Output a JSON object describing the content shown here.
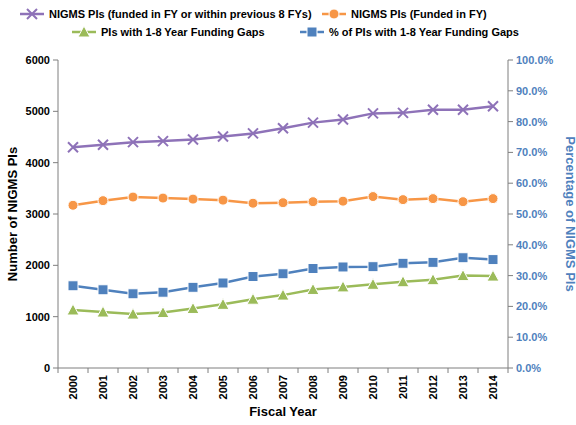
{
  "chart_data": {
    "type": "line",
    "x_label": "Fiscal Year",
    "y_label": "Number of NIGMS PIs",
    "y2_label": "Percentage of NIGMS PIs",
    "categories": [
      "2000",
      "2001",
      "2002",
      "2003",
      "2004",
      "2005",
      "2006",
      "2007",
      "2008",
      "2009",
      "2010",
      "2011",
      "2012",
      "2013",
      "2014"
    ],
    "ylim": [
      0,
      6000
    ],
    "yticks": [
      0,
      1000,
      2000,
      3000,
      4000,
      5000,
      6000
    ],
    "y2lim": [
      0,
      100
    ],
    "y2ticks": [
      {
        "value": 0,
        "label": "0.0%"
      },
      {
        "value": 10,
        "label": "10.0%"
      },
      {
        "value": 20,
        "label": "20.0%"
      },
      {
        "value": 30,
        "label": "30.0%"
      },
      {
        "value": 40,
        "label": "40.0%"
      },
      {
        "value": 50,
        "label": "50.0%"
      },
      {
        "value": 60,
        "label": "60.0%"
      },
      {
        "value": 70,
        "label": "70.0%"
      },
      {
        "value": 80,
        "label": "80.0%"
      },
      {
        "value": 90,
        "label": "90.0%"
      },
      {
        "value": 100,
        "label": "100.0%"
      }
    ],
    "grid": false,
    "legend": "top",
    "series": [
      {
        "name": "NIGMS PIs (funded in FY or within previous 8 FYs)",
        "color": "#8e72b8",
        "marker": "x",
        "values": [
          4300,
          4350,
          4400,
          4420,
          4450,
          4510,
          4570,
          4670,
          4780,
          4840,
          4960,
          4970,
          5030,
          5030,
          5100
        ]
      },
      {
        "name": "NIGMS PIs (Funded in FY)",
        "color": "#f79646",
        "marker": "circle",
        "values": [
          3170,
          3260,
          3330,
          3310,
          3290,
          3270,
          3210,
          3220,
          3240,
          3250,
          3340,
          3280,
          3300,
          3240,
          3300
        ]
      },
      {
        "name": "PIs with 1-8 Year Funding Gaps",
        "color": "#9bbb59",
        "marker": "triangle",
        "values": [
          1130,
          1090,
          1050,
          1080,
          1160,
          1240,
          1340,
          1420,
          1530,
          1580,
          1630,
          1680,
          1720,
          1800,
          1790
        ]
      },
      {
        "name": "% of PIs with 1-8 Year Funding Gaps",
        "color": "#4f81bd",
        "marker": "square",
        "axis": "y2",
        "values": [
          26.7,
          25.4,
          24.1,
          24.6,
          26.2,
          27.6,
          29.7,
          30.6,
          32.3,
          32.8,
          32.9,
          34.0,
          34.3,
          35.8,
          35.2
        ]
      }
    ]
  }
}
